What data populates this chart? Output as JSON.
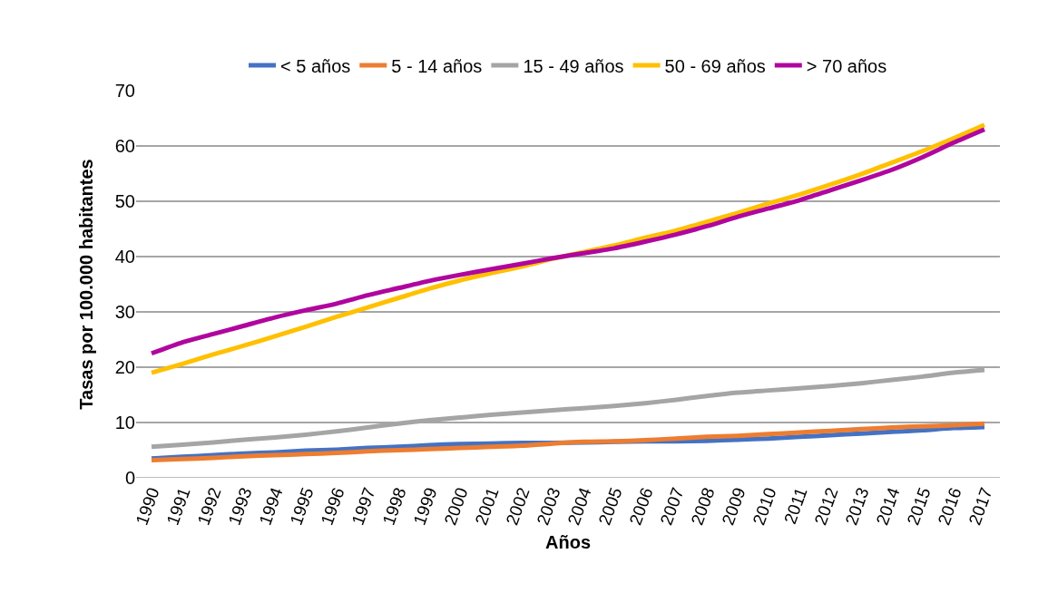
{
  "chart_data": {
    "type": "line",
    "xlabel": "Años",
    "ylabel": "Tasas por 100.000 habitantes",
    "categories": [
      "1990",
      "1991",
      "1992",
      "1993",
      "1994",
      "1995",
      "1996",
      "1997",
      "1998",
      "1999",
      "2000",
      "2001",
      "2002",
      "2003",
      "2004",
      "2005",
      "2006",
      "2007",
      "2008",
      "2009",
      "2010",
      "2011",
      "2012",
      "2013",
      "2014",
      "2015",
      "2016",
      "2017"
    ],
    "series": [
      {
        "name": "< 5 años",
        "color": "#4472c4",
        "values": [
          3.5,
          3.8,
          4.1,
          4.4,
          4.6,
          4.9,
          5.1,
          5.4,
          5.6,
          5.9,
          6.1,
          6.2,
          6.3,
          6.3,
          6.4,
          6.5,
          6.6,
          6.6,
          6.7,
          6.9,
          7.1,
          7.4,
          7.7,
          8.0,
          8.3,
          8.6,
          9.0,
          9.2
        ]
      },
      {
        "name": "5 - 14 años",
        "color": "#ed7d31",
        "values": [
          3.2,
          3.4,
          3.6,
          3.9,
          4.1,
          4.3,
          4.5,
          4.8,
          5.0,
          5.2,
          5.4,
          5.6,
          5.8,
          6.2,
          6.5,
          6.6,
          6.8,
          7.1,
          7.4,
          7.6,
          7.9,
          8.2,
          8.5,
          8.8,
          9.1,
          9.3,
          9.5,
          9.8
        ]
      },
      {
        "name": "15 - 49 años",
        "color": "#a5a5a5",
        "values": [
          5.6,
          6.0,
          6.4,
          6.9,
          7.3,
          7.8,
          8.4,
          9.1,
          9.8,
          10.4,
          10.9,
          11.4,
          11.8,
          12.2,
          12.6,
          13.0,
          13.5,
          14.1,
          14.8,
          15.4,
          15.8,
          16.2,
          16.6,
          17.1,
          17.7,
          18.3,
          19.0,
          19.5
        ]
      },
      {
        "name": "50 - 69 años",
        "color": "#ffc000",
        "values": [
          19,
          20.6,
          22.3,
          23.9,
          25.6,
          27.3,
          29.1,
          30.8,
          32.5,
          34.2,
          35.7,
          37,
          38.2,
          39.6,
          40.8,
          42,
          43.4,
          44.7,
          46.3,
          47.9,
          49.6,
          51.2,
          53,
          54.9,
          57,
          59.1,
          61.4,
          63.8
        ]
      },
      {
        "name": "> 70 años",
        "color": "#b0069e",
        "values": [
          22.5,
          24.5,
          26,
          27.5,
          29,
          30.3,
          31.5,
          33,
          34.3,
          35.6,
          36.7,
          37.7,
          38.7,
          39.7,
          40.6,
          41.5,
          42.7,
          44,
          45.5,
          47.2,
          48.7,
          50.2,
          52,
          53.8,
          55.7,
          58,
          60.6,
          63
        ]
      }
    ],
    "ylim": [
      0,
      70
    ],
    "yticks": [
      0,
      10,
      20,
      30,
      40,
      50,
      60,
      70
    ],
    "grid": "y",
    "legend": "top",
    "marker": "none",
    "line_style": "solid"
  }
}
